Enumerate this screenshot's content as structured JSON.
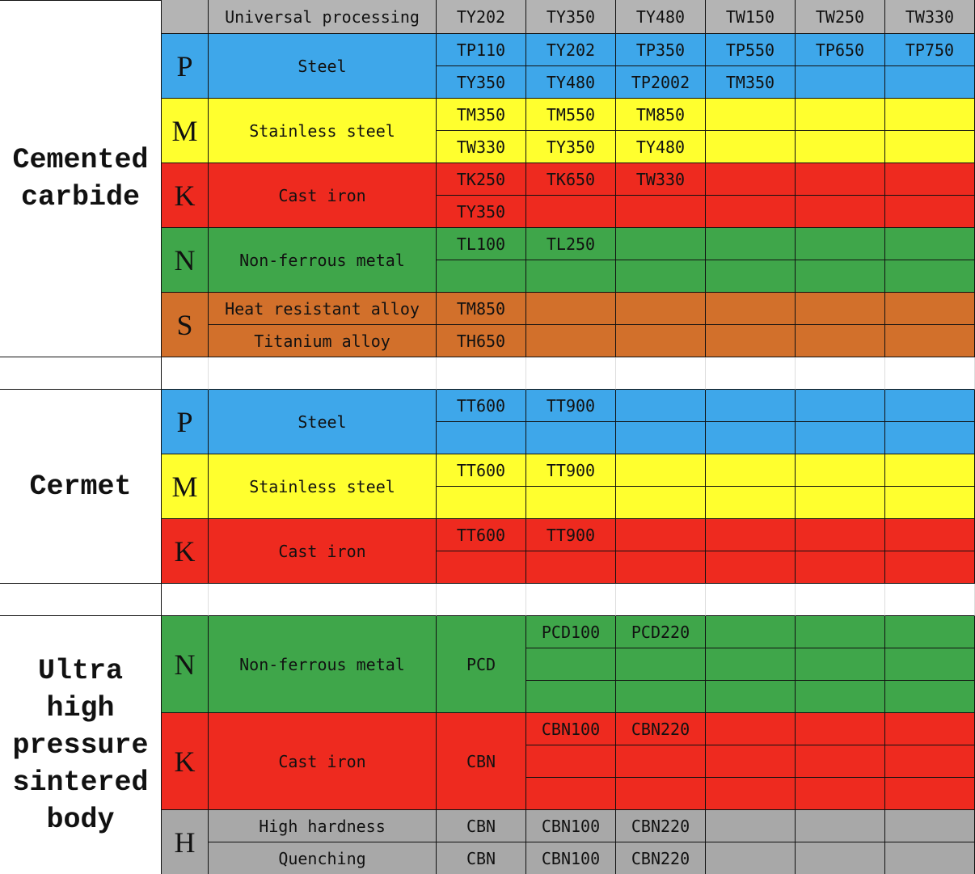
{
  "header": {
    "label": "Universal processing",
    "grades": [
      "TY202",
      "TY350",
      "TY480",
      "TW150",
      "TW250",
      "TW330"
    ],
    "color": "#b4b4b4"
  },
  "sections": [
    {
      "name": "Cemented carbide",
      "groups": [
        {
          "letter": "P",
          "color": "#3ea7ea",
          "materials": [
            "Steel"
          ],
          "rows": [
            [
              "TP110",
              "TY202",
              "TP350",
              "TP550",
              "TP650",
              "TP750"
            ],
            [
              "TY350",
              "TY480",
              "TP2002",
              "TM350"
            ]
          ]
        },
        {
          "letter": "M",
          "color": "#ffff2e",
          "materials": [
            "Stainless steel"
          ],
          "rows": [
            [
              "TM350",
              "TM550",
              "TM850"
            ],
            [
              "TW330",
              "TY350",
              "TY480"
            ]
          ]
        },
        {
          "letter": "K",
          "color": "#ee2a1f",
          "materials": [
            "Cast iron"
          ],
          "rows": [
            [
              "TK250",
              "TK650",
              "TW330"
            ],
            [
              "TY350"
            ]
          ]
        },
        {
          "letter": "N",
          "color": "#3fa64a",
          "materials": [
            "Non-ferrous metal"
          ],
          "rows": [
            [
              "TL100",
              "TL250"
            ],
            []
          ]
        },
        {
          "letter": "S",
          "color": "#d2702b",
          "materials": [
            "Heat resistant alloy",
            "Titanium alloy"
          ],
          "rows": [
            [
              "TM850"
            ],
            [
              "TH650"
            ]
          ]
        }
      ]
    },
    {
      "name": "Cermet",
      "groups": [
        {
          "letter": "P",
          "color": "#3ea7ea",
          "materials": [
            "Steel"
          ],
          "rows": [
            [
              "TT600",
              "TT900"
            ],
            []
          ]
        },
        {
          "letter": "M",
          "color": "#ffff2e",
          "materials": [
            "Stainless steel"
          ],
          "rows": [
            [
              "TT600",
              "TT900"
            ],
            []
          ]
        },
        {
          "letter": "K",
          "color": "#ee2a1f",
          "materials": [
            "Cast iron"
          ],
          "rows": [
            [
              "TT600",
              "TT900"
            ],
            []
          ]
        }
      ]
    },
    {
      "name": "Ultra high pressure sintered body",
      "groups": [
        {
          "letter": "N",
          "color": "#3fa64a",
          "materials": [
            "Non-ferrous metal"
          ],
          "span_grade": "PCD",
          "rows": [
            [
              "PCD100",
              "PCD220"
            ],
            [],
            []
          ]
        },
        {
          "letter": "K",
          "color": "#ee2a1f",
          "materials": [
            "Cast iron"
          ],
          "span_grade": "CBN",
          "rows": [
            [
              "CBN100",
              "CBN220"
            ],
            [],
            []
          ]
        },
        {
          "letter": "H",
          "color": "#a8a8a8",
          "materials": [
            "High hardness",
            "Quenching"
          ],
          "rows": [
            [
              "CBN",
              "CBN100",
              "CBN220"
            ],
            [
              "CBN",
              "CBN100",
              "CBN220"
            ]
          ]
        }
      ]
    }
  ]
}
